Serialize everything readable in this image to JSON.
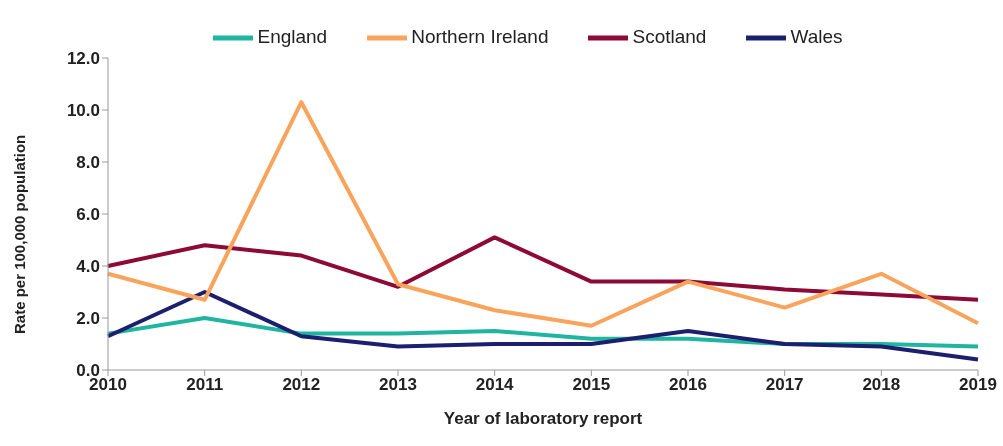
{
  "chart_data": {
    "type": "line",
    "xlabel": "Year of laboratory report",
    "ylabel": "Rate per 100,000 population",
    "categories": [
      "2010",
      "2011",
      "2012",
      "2013",
      "2014",
      "2015",
      "2016",
      "2017",
      "2018",
      "2019"
    ],
    "series": [
      {
        "name": "England",
        "color": "#1fb5a0",
        "values": [
          1.4,
          2.0,
          1.4,
          1.4,
          1.5,
          1.2,
          1.2,
          1.0,
          1.0,
          0.9
        ]
      },
      {
        "name": "Scotland",
        "color": "#8c0a35",
        "values": [
          4.0,
          4.8,
          4.4,
          3.2,
          5.1,
          3.4,
          3.4,
          3.1,
          2.9,
          2.7
        ]
      },
      {
        "name": "Wales",
        "color": "#1c1e6e",
        "values": [
          1.3,
          3.0,
          1.3,
          0.9,
          1.0,
          1.0,
          1.5,
          1.0,
          0.9,
          0.4
        ]
      },
      {
        "name": "Northern Ireland",
        "color": "#f9a45c",
        "values": [
          3.7,
          2.7,
          10.3,
          3.3,
          2.3,
          1.7,
          3.4,
          2.4,
          3.7,
          1.8
        ]
      }
    ],
    "ylim": [
      0,
      12
    ],
    "yticks": [
      {
        "value": 0,
        "label": "0.0"
      },
      {
        "value": 2,
        "label": "2.0"
      },
      {
        "value": 4,
        "label": "4.0"
      },
      {
        "value": 6,
        "label": "6.0"
      },
      {
        "value": 8,
        "label": "8.0"
      },
      {
        "value": 10,
        "label": "10.0"
      },
      {
        "value": 12,
        "label": "12.0"
      }
    ],
    "grid": false,
    "legend": "top",
    "marker": "none",
    "line_style": "solid"
  }
}
